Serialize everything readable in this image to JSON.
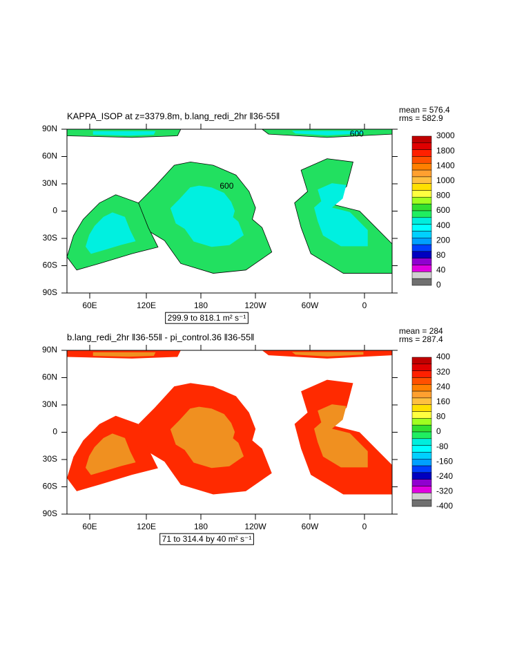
{
  "panels": [
    {
      "title": "KAPPA_ISOP at z=3379.8m, b.lang_redi_2hr ‖36-55‖",
      "stats": [
        "mean = 576.4",
        "rms = 582.9"
      ],
      "lat_ticks": [
        "90N",
        "60N",
        "30N",
        "0",
        "30S",
        "60S",
        "90S"
      ],
      "lon_ticks": [
        "60E",
        "120E",
        "180",
        "120W",
        "60W",
        "0"
      ],
      "contour_labels": [
        "600",
        "600"
      ],
      "range_label": "299.9 to 818.1 m² s⁻¹",
      "colorbar": {
        "labels": [
          3000,
          1800,
          1400,
          1000,
          800,
          600,
          400,
          200,
          80,
          40,
          0
        ],
        "colors": [
          "#c00000",
          "#e00000",
          "#ff2000",
          "#ff5000",
          "#ff8000",
          "#ffa030",
          "#ffc040",
          "#ffe000",
          "#ffff40",
          "#a0ff20",
          "#30e030",
          "#20ee60",
          "#00eedd",
          "#00ffff",
          "#00d0ff",
          "#00a0ff",
          "#0040ff",
          "#0000c0",
          "#9000d0",
          "#e000e0",
          "#d0d0d0",
          "#707070"
        ]
      },
      "ocean_colors": [
        "#22e060",
        "#00f0e0"
      ]
    },
    {
      "title": "b.lang_redi_2hr ‖36-55‖ - pi_control.36 ‖36-55‖",
      "stats": [
        "mean = 284",
        "rms = 287.4"
      ],
      "lat_ticks": [
        "90N",
        "60N",
        "30N",
        "0",
        "30S",
        "60S",
        "90S"
      ],
      "lon_ticks": [
        "60E",
        "120E",
        "180",
        "120W",
        "60W",
        "0"
      ],
      "range_label": "71 to 314.4 by 40 m² s⁻¹",
      "colorbar": {
        "labels": [
          400,
          320,
          240,
          160,
          80,
          0,
          -80,
          -160,
          -240,
          -320,
          -400
        ],
        "colors": [
          "#c00000",
          "#e00000",
          "#ff2000",
          "#ff5000",
          "#ff8000",
          "#ffa030",
          "#ffc040",
          "#ffe000",
          "#ffff40",
          "#a0ff20",
          "#30e030",
          "#20ee60",
          "#00eedd",
          "#00ffff",
          "#00d0ff",
          "#00a0ff",
          "#0040ff",
          "#0000c0",
          "#9000d0",
          "#e000e0",
          "#d0d0d0",
          "#707070"
        ]
      },
      "ocean_colors": [
        "#ff2a00",
        "#f09020"
      ]
    }
  ]
}
